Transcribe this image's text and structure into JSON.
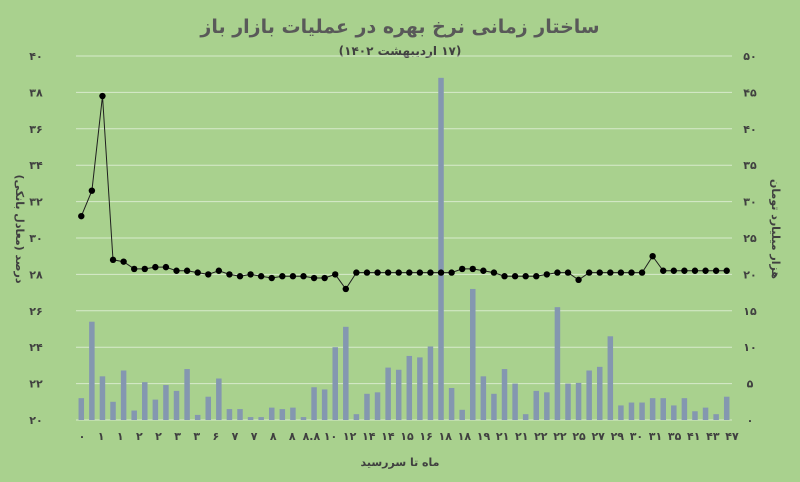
{
  "chart_data": {
    "type": "bar+line",
    "title": "ساختار زمانی نرخ بهره در عملیات بازار باز",
    "subtitle": "(۱۷ اردیبهشت ۱۴۰۲)",
    "xlabel": "ماه تا سررسید",
    "ylabel_left": "درصد (معادل بانکی)",
    "ylabel_right": "هزار میلیارد تومان",
    "y_left_range": [
      20,
      40
    ],
    "y_right_range": [
      0,
      50
    ],
    "y_left_ticks": [
      "۲۰",
      "۲۲",
      "۲۴",
      "۲۶",
      "۲۸",
      "۳۰",
      "۳۲",
      "۳۴",
      "۳۶",
      "۳۸",
      "۴۰"
    ],
    "y_right_ticks": [
      "۰",
      "۵",
      "۱۰",
      "۱۵",
      "۲۰",
      "۲۵",
      "۳۰",
      "۳۵",
      "۴۰",
      "۴۵",
      "۵۰"
    ],
    "x_tick_labels": [
      "۰",
      "۱",
      "۱",
      "۲",
      "۲",
      "۳",
      "۳",
      "۶",
      "۷",
      "۷",
      "۸",
      "۸",
      "۸.۸",
      "۱۰",
      "۱۲",
      "۱۴",
      "۱۴",
      "۱۵",
      "۱۶",
      "۱۸",
      "۱۸",
      "۱۹",
      "۲۱",
      "۲۱",
      "۲۲",
      "۲۲",
      "۲۵",
      "۲۷",
      "۲۹",
      "۳۰",
      "۳۱",
      "۳۵",
      "۴۱",
      "۴۳",
      "۴۷"
    ],
    "series": [
      {
        "kind": "bar",
        "axis": "right",
        "values": [
          3.0,
          13.5,
          6.0,
          2.5,
          6.8,
          1.3,
          5.2,
          2.8,
          4.8,
          4.0,
          7.0,
          0.7,
          3.2,
          5.7,
          1.5,
          1.5,
          0.4,
          0.4,
          1.7,
          1.5,
          1.7,
          0.4,
          4.5,
          4.2,
          10.0,
          12.8,
          0.8,
          3.6,
          3.8,
          7.2,
          6.9,
          8.8,
          8.6,
          10.1,
          47.0,
          4.4,
          1.4,
          18.0,
          6.0,
          3.6,
          7.0,
          5.0,
          0.8,
          4.0,
          3.8,
          15.5,
          5.0,
          5.1,
          6.8,
          7.3,
          11.5,
          2.0,
          2.4,
          2.4,
          3.0,
          3.0,
          2.0,
          3.0,
          1.2,
          1.7,
          0.8,
          3.2
        ]
      },
      {
        "kind": "line",
        "axis": "left",
        "values": [
          31.2,
          32.6,
          37.8,
          28.8,
          28.7,
          28.3,
          28.3,
          28.4,
          28.4,
          28.2,
          28.2,
          28.1,
          28.0,
          28.2,
          28.0,
          27.9,
          28.0,
          27.9,
          27.8,
          27.9,
          27.9,
          27.9,
          27.8,
          27.8,
          28.0,
          27.2,
          28.1,
          28.1,
          28.1,
          28.1,
          28.1,
          28.1,
          28.1,
          28.1,
          28.1,
          28.1,
          28.3,
          28.3,
          28.2,
          28.1,
          27.9,
          27.9,
          27.9,
          27.9,
          28.0,
          28.1,
          28.1,
          27.7,
          28.1,
          28.1,
          28.1,
          28.1,
          28.1,
          28.1,
          29.0,
          28.2,
          28.2,
          28.2,
          28.2,
          28.2,
          28.2,
          28.2
        ]
      }
    ],
    "colors": {
      "background": "#a9d18e",
      "bars": "#8497b0",
      "line": "#1f1f1f",
      "markers": "#000000",
      "text": "#404040"
    },
    "grid": true,
    "legend": "none"
  }
}
